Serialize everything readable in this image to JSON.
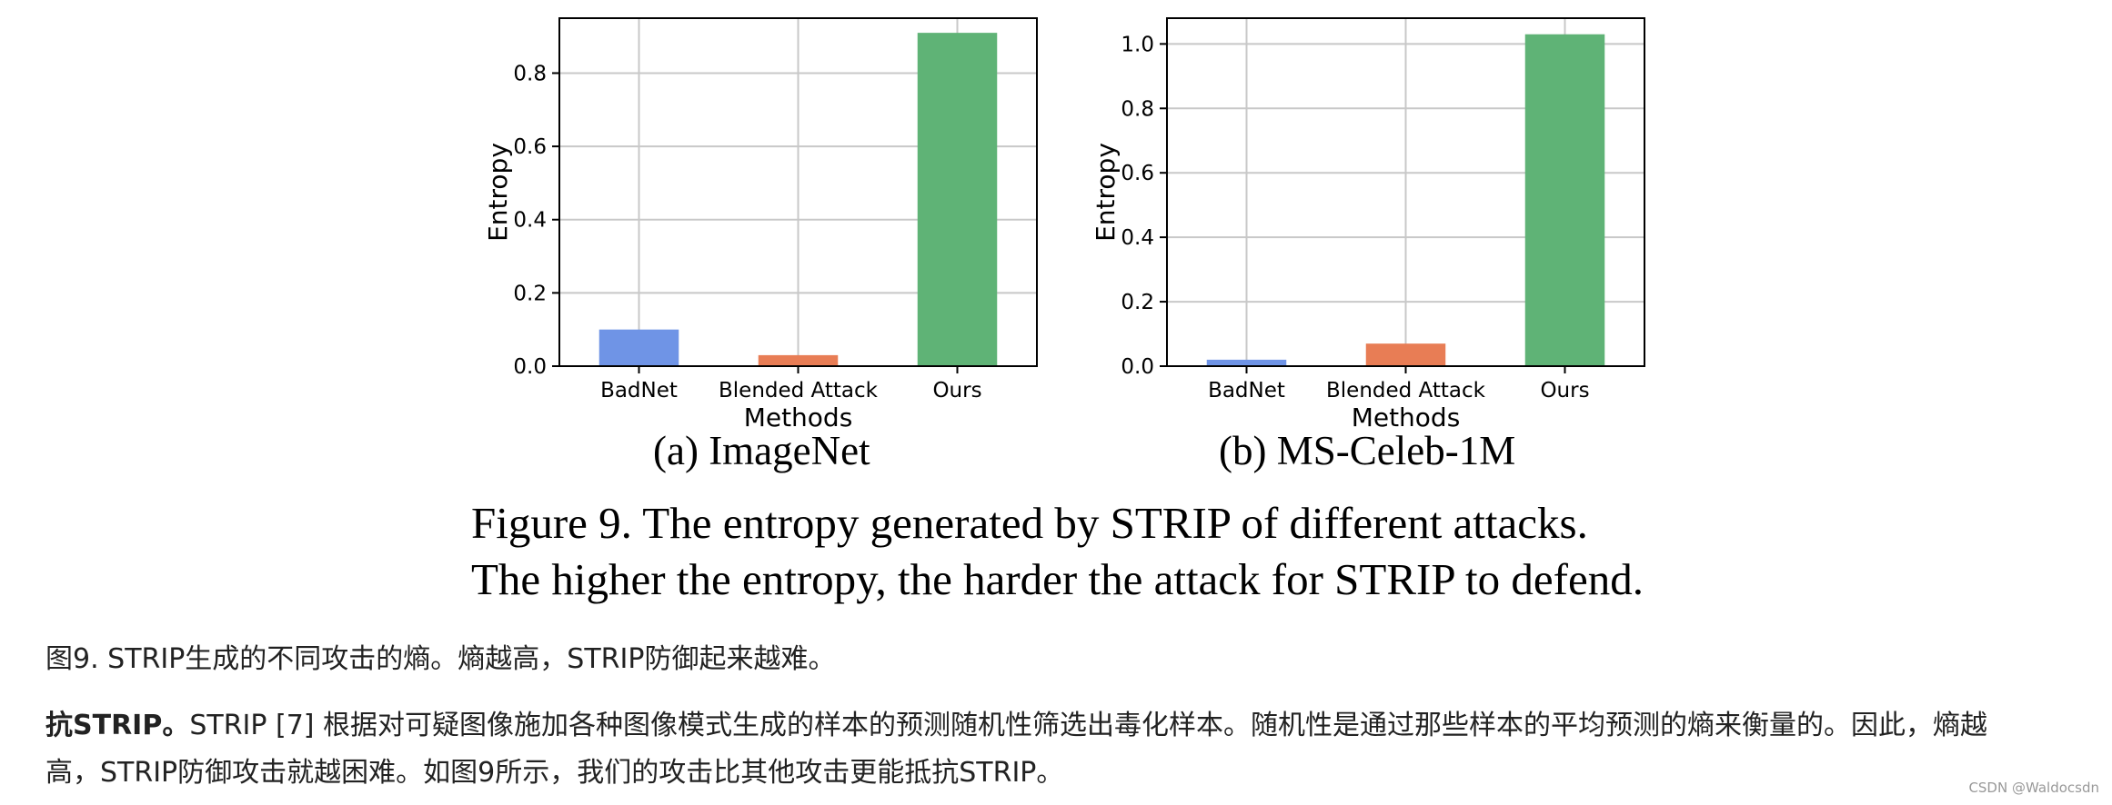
{
  "chart_data": [
    {
      "type": "bar",
      "categories": [
        "BadNet",
        "Blended Attack",
        "Ours"
      ],
      "values": [
        0.1,
        0.03,
        0.91
      ],
      "colors": [
        "#6f94e6",
        "#e87d55",
        "#5fb376"
      ],
      "xlabel": "Methods",
      "ylabel": "Entropy",
      "ylim": [
        0,
        0.95
      ],
      "yticks": [
        "0.0",
        "0.2",
        "0.4",
        "0.6",
        "0.8"
      ],
      "grid": true
    },
    {
      "type": "bar",
      "categories": [
        "BadNet",
        "Blended Attack",
        "Ours"
      ],
      "values": [
        0.02,
        0.07,
        1.03
      ],
      "colors": [
        "#6f94e6",
        "#e87d55",
        "#5fb376"
      ],
      "xlabel": "Methods",
      "ylabel": "Entropy",
      "ylim": [
        0,
        1.08
      ],
      "yticks": [
        "0.0",
        "0.2",
        "0.4",
        "0.6",
        "0.8",
        "1.0"
      ],
      "grid": true
    }
  ],
  "subcaptions": [
    "(a)  ImageNet",
    "(b)  MS-Celeb-1M"
  ],
  "figure_caption": {
    "line1": "Figure 9. The entropy generated by STRIP of different attacks.",
    "line2": "The higher the entropy, the harder the attack for STRIP to defend."
  },
  "translation_caption": "图9. STRIP生成的不同攻击的熵。熵越高，STRIP防御起来越难。",
  "paragraph": {
    "bold_lead": "抗STRIP。",
    "line1": "STRIP [7] 根据对可疑图像施加各种图像模式生成的样本的预测随机性筛选出毒化样本。随机性是通过那些样本的平均预测的熵来衡量的。因此，熵越",
    "line2": "高，STRIP防御攻击就越困难。如图9所示，我们的攻击比其他攻击更能抵抗STRIP。"
  },
  "watermark": "CSDN @Waldocsdn"
}
